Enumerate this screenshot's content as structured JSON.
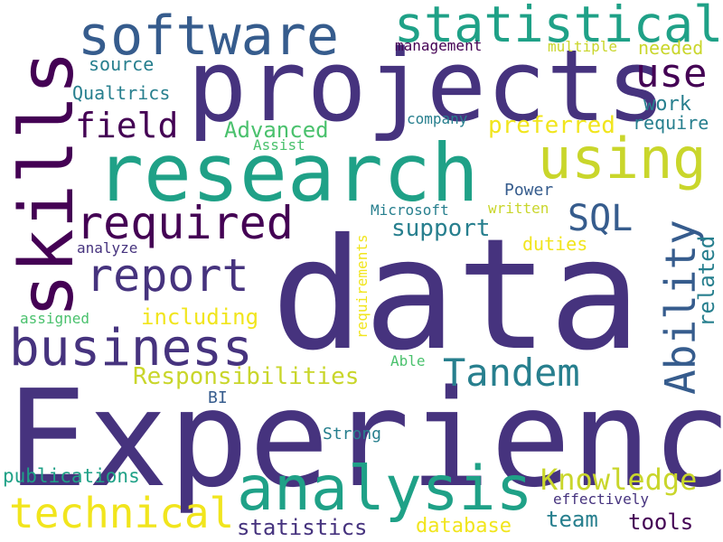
{
  "words": [
    {
      "text": "data",
      "color": "#46337e"
    },
    {
      "text": "Experience",
      "color": "#46337e"
    },
    {
      "text": "projects",
      "color": "#46337e"
    },
    {
      "text": "research",
      "color": "#1fa187"
    },
    {
      "text": "skills",
      "color": "#440154"
    },
    {
      "text": "software",
      "color": "#365c8d"
    },
    {
      "text": "statistical",
      "color": "#1fa187"
    },
    {
      "text": "analysis",
      "color": "#1fa187"
    },
    {
      "text": "business",
      "color": "#46337e"
    },
    {
      "text": "using",
      "color": "#c9d62b"
    },
    {
      "text": "required",
      "color": "#440154"
    },
    {
      "text": "report",
      "color": "#46337e"
    },
    {
      "text": "technical",
      "color": "#f1e51d"
    },
    {
      "text": "Ability",
      "color": "#365c8d"
    },
    {
      "text": "Tandem",
      "color": "#277f8e"
    },
    {
      "text": "Knowledge",
      "color": "#c9d62b"
    },
    {
      "text": "use",
      "color": "#440154"
    },
    {
      "text": "field",
      "color": "#440154"
    },
    {
      "text": "SQL",
      "color": "#365c8d"
    },
    {
      "text": "Responsibilities",
      "color": "#c9d62b"
    },
    {
      "text": "statistics",
      "color": "#46337e"
    },
    {
      "text": "support",
      "color": "#277f8e"
    },
    {
      "text": "including",
      "color": "#f1e51d"
    },
    {
      "text": "publications",
      "color": "#1fa187"
    },
    {
      "text": "Advanced",
      "color": "#4ac16d"
    },
    {
      "text": "preferred",
      "color": "#f1e51d"
    },
    {
      "text": "related",
      "color": "#277f8e"
    },
    {
      "text": "team",
      "color": "#277f8e"
    },
    {
      "text": "tools",
      "color": "#440154"
    },
    {
      "text": "database",
      "color": "#f1e51d"
    },
    {
      "text": "work",
      "color": "#277f8e"
    },
    {
      "text": "Qualtrics",
      "color": "#277f8e"
    },
    {
      "text": "source",
      "color": "#277f8e"
    },
    {
      "text": "needed",
      "color": "#c9d62b"
    },
    {
      "text": "require",
      "color": "#277f8e"
    },
    {
      "text": "duties",
      "color": "#f1e51d"
    },
    {
      "text": "Power",
      "color": "#365c8d"
    },
    {
      "text": "management",
      "color": "#440154"
    },
    {
      "text": "multiple",
      "color": "#c9d62b"
    },
    {
      "text": "company",
      "color": "#277f8e"
    },
    {
      "text": "Assist",
      "color": "#4ac16d"
    },
    {
      "text": "Microsoft",
      "color": "#277f8e"
    },
    {
      "text": "written",
      "color": "#c9d62b"
    },
    {
      "text": "analyze",
      "color": "#46337e"
    },
    {
      "text": "requirements",
      "color": "#f1e51d"
    },
    {
      "text": "assigned",
      "color": "#4ac16d"
    },
    {
      "text": "Able",
      "color": "#4ac16d"
    },
    {
      "text": "BI",
      "color": "#365c8d"
    },
    {
      "text": "Strong",
      "color": "#277f8e"
    },
    {
      "text": "effectively",
      "color": "#46337e"
    }
  ]
}
